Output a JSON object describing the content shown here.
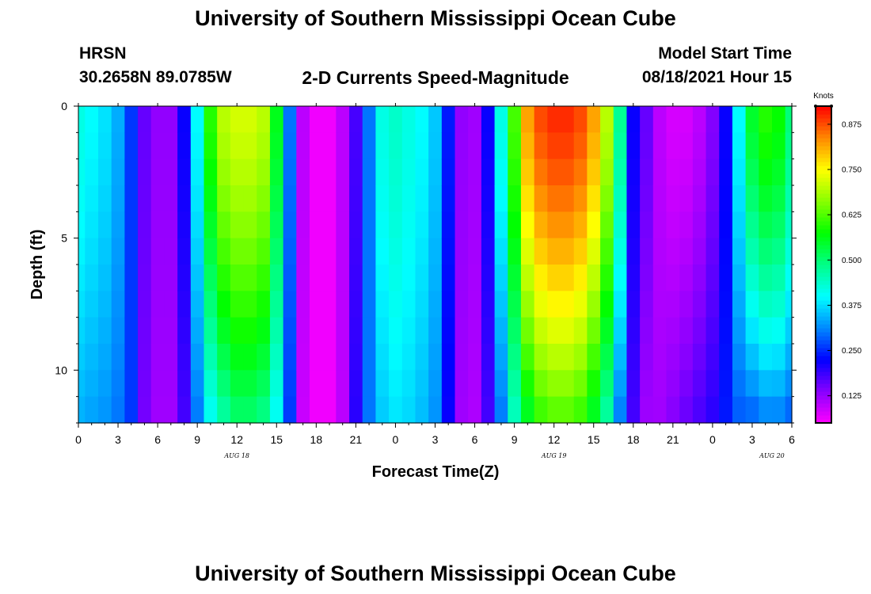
{
  "page": {
    "title_top": "University of Southern Mississippi Ocean Cube",
    "title_bottom": "University of Southern Mississippi Ocean Cube",
    "station": "HRSN",
    "coords": "30.2658N  89.0785W",
    "plot_title": "2-D Currents Speed-Magnitude",
    "model_label": "Model Start Time",
    "model_time": "08/18/2021 Hour 15"
  },
  "colors": {
    "scale": [
      "#ff00ff",
      "#8800ff",
      "#0000ff",
      "#0088ff",
      "#00ffff",
      "#00ff88",
      "#00ff00",
      "#88ff00",
      "#ffff00",
      "#ff8800",
      "#ff0000"
    ]
  },
  "chart_data": {
    "type": "heatmap",
    "xlabel": "Forecast Time(Z)",
    "ylabel": "Depth (ft)",
    "colorbar_title": "Knots",
    "x_hours_range": [
      0,
      54
    ],
    "y_range": [
      0,
      12
    ],
    "x_tick_labels": [
      "0",
      "3",
      "6",
      "9",
      "12",
      "15",
      "18",
      "21",
      "0",
      "3",
      "6",
      "9",
      "12",
      "15",
      "18",
      "21",
      "0",
      "3",
      "6"
    ],
    "y_ticks": [
      0,
      5,
      10
    ],
    "date_labels": [
      {
        "text": "AUG 18",
        "hour": 12
      },
      {
        "text": "AUG 19",
        "hour": 36
      },
      {
        "text": "AUG 20",
        "hour": 52.5
      }
    ],
    "colorbar_range": [
      0.05,
      0.925
    ],
    "colorbar_ticks": [
      "0.125",
      "0.250",
      "0.375",
      "0.500",
      "0.625",
      "0.750",
      "0.875"
    ],
    "colorbar_tick_values": [
      0.125,
      0.25,
      0.375,
      0.5,
      0.625,
      0.75,
      0.875
    ],
    "speed_profile": {
      "hours": [
        0,
        1,
        2,
        3,
        4,
        5,
        6,
        7,
        8,
        9,
        10,
        11,
        12,
        13,
        14,
        15,
        16,
        17,
        18,
        19,
        20,
        21,
        22,
        23,
        24,
        25,
        26,
        27,
        28,
        29,
        30,
        31,
        32,
        33,
        34,
        35,
        36,
        37,
        38,
        39,
        40,
        41,
        42,
        43,
        44,
        45,
        46,
        47,
        48,
        49,
        50,
        51,
        52,
        53,
        54
      ],
      "surface": [
        0.42,
        0.4,
        0.38,
        0.34,
        0.26,
        0.16,
        0.13,
        0.13,
        0.22,
        0.4,
        0.6,
        0.7,
        0.72,
        0.72,
        0.7,
        0.56,
        0.3,
        0.1,
        0.06,
        0.06,
        0.1,
        0.18,
        0.3,
        0.42,
        0.44,
        0.42,
        0.4,
        0.36,
        0.24,
        0.13,
        0.12,
        0.22,
        0.42,
        0.62,
        0.82,
        0.88,
        0.9,
        0.9,
        0.88,
        0.82,
        0.7,
        0.48,
        0.22,
        0.16,
        0.1,
        0.08,
        0.08,
        0.1,
        0.14,
        0.22,
        0.4,
        0.55,
        0.6,
        0.58,
        0.5
      ],
      "bottom": [
        0.34,
        0.33,
        0.32,
        0.3,
        0.26,
        0.15,
        0.12,
        0.12,
        0.18,
        0.3,
        0.4,
        0.46,
        0.5,
        0.5,
        0.48,
        0.4,
        0.26,
        0.09,
        0.06,
        0.06,
        0.1,
        0.2,
        0.3,
        0.36,
        0.38,
        0.37,
        0.35,
        0.32,
        0.22,
        0.12,
        0.11,
        0.18,
        0.3,
        0.44,
        0.54,
        0.6,
        0.62,
        0.62,
        0.6,
        0.54,
        0.46,
        0.3,
        0.18,
        0.12,
        0.12,
        0.14,
        0.16,
        0.18,
        0.2,
        0.24,
        0.28,
        0.28,
        0.3,
        0.3,
        0.28
      ]
    }
  }
}
